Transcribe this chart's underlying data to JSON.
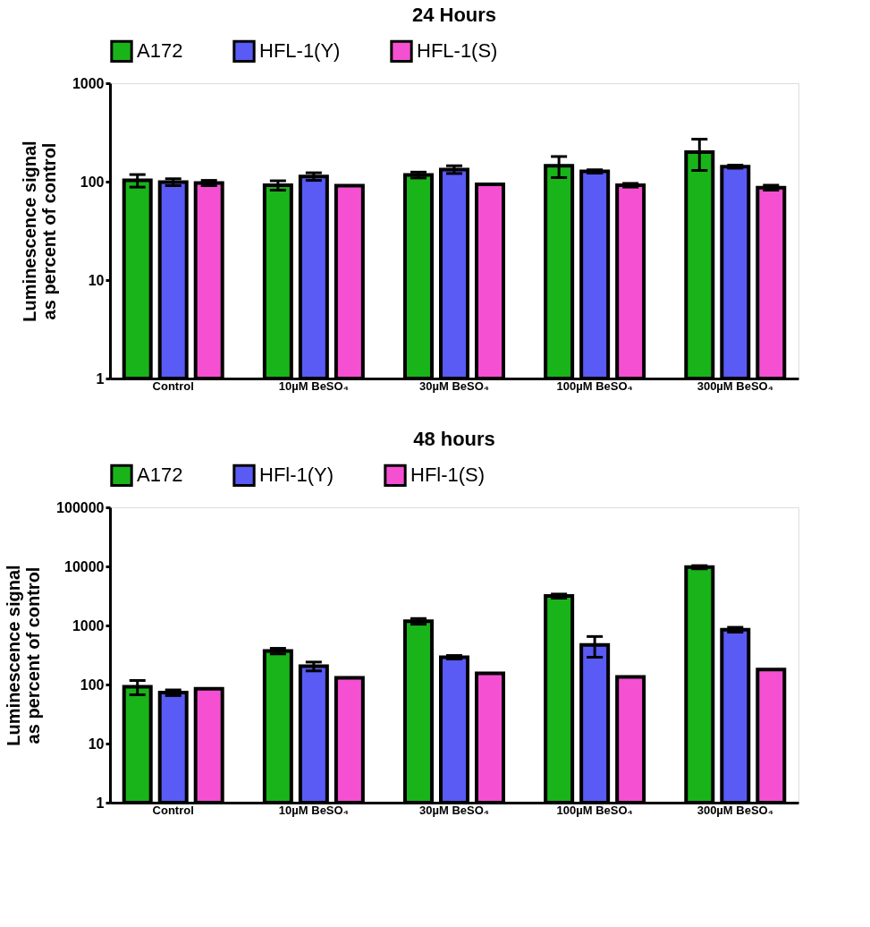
{
  "chart_data": [
    {
      "type": "bar",
      "title": "24 Hours",
      "ylabel": "Luminescence signal\nas percent of control",
      "log": "y",
      "grid": false,
      "legend": "top",
      "categories": [
        "Control",
        "10µM BeSO₄",
        "30µM BeSO₄",
        "100µM BeSO₄",
        "300µM BeSO₄"
      ],
      "ylim": [
        1,
        1000
      ],
      "yticks": [
        1,
        10,
        100,
        1000
      ],
      "series": [
        {
          "name": "A172",
          "color": "#19b419",
          "values": [
            103,
            92,
            117,
            145,
            200
          ],
          "errors": [
            15,
            10,
            8,
            35,
            70
          ]
        },
        {
          "name": "HFL-1(Y)",
          "color": "#5a5af5",
          "values": [
            99,
            113,
            133,
            127,
            142
          ],
          "errors": [
            8,
            10,
            12,
            5,
            5
          ]
        },
        {
          "name": "HFL-1(S)",
          "color": "#f550d2",
          "values": [
            97,
            91,
            94,
            92,
            87
          ],
          "errors": [
            6,
            null,
            null,
            4,
            5
          ]
        }
      ]
    },
    {
      "type": "bar",
      "title": "48 hours",
      "ylabel": "Luminescence signal\nas percent of control",
      "log": "y",
      "grid": false,
      "legend": "top",
      "categories": [
        "Control",
        "10µM BeSO₄",
        "30µM BeSO₄",
        "100µM BeSO₄",
        "300µM BeSO₄"
      ],
      "ylim": [
        1,
        100000
      ],
      "yticks": [
        1,
        10,
        100,
        1000,
        10000,
        100000
      ],
      "series": [
        {
          "name": "A172",
          "color": "#19b419",
          "values": [
            92,
            370,
            1180,
            3150,
            9700
          ],
          "errors": [
            25,
            40,
            130,
            250,
            600
          ]
        },
        {
          "name": "HFl-1(Y)",
          "color": "#5a5af5",
          "values": [
            73,
            205,
            290,
            470,
            850
          ],
          "errors": [
            8,
            35,
            20,
            180,
            80
          ]
        },
        {
          "name": "HFl-1(S)",
          "color": "#f550d2",
          "values": [
            85,
            130,
            155,
            135,
            180
          ],
          "errors": [
            null,
            null,
            null,
            null,
            null
          ]
        }
      ]
    }
  ]
}
